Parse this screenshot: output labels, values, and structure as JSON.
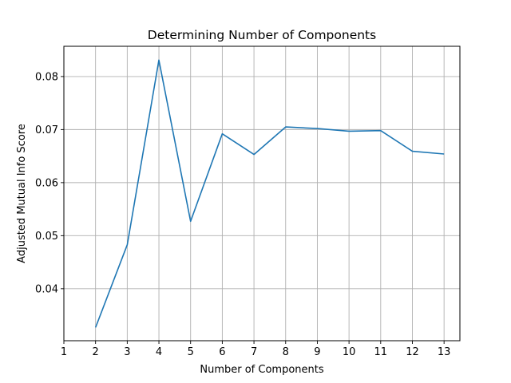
{
  "chart_data": {
    "type": "line",
    "title": "Determining Number of Components",
    "xlabel": "Number of Components",
    "ylabel": "Adjusted Mutual Info Score",
    "xlim": [
      1,
      13.5
    ],
    "ylim": [
      0.0302,
      0.0857
    ],
    "xticks": [
      1,
      2,
      3,
      4,
      5,
      6,
      7,
      8,
      9,
      10,
      11,
      12,
      13
    ],
    "yticks": [
      0.04,
      0.05,
      0.06,
      0.07,
      0.08
    ],
    "ytick_labels": [
      "0.04",
      "0.05",
      "0.06",
      "0.07",
      "0.08"
    ],
    "grid": true,
    "color": "#1f77b4",
    "series": [
      {
        "x": [
          2,
          3,
          4,
          5,
          6,
          7,
          8,
          9,
          10,
          11,
          12,
          13
        ],
        "values": [
          0.0327,
          0.0483,
          0.0831,
          0.0527,
          0.0692,
          0.0653,
          0.0705,
          0.0702,
          0.0697,
          0.0698,
          0.0659,
          0.0654
        ]
      }
    ]
  }
}
